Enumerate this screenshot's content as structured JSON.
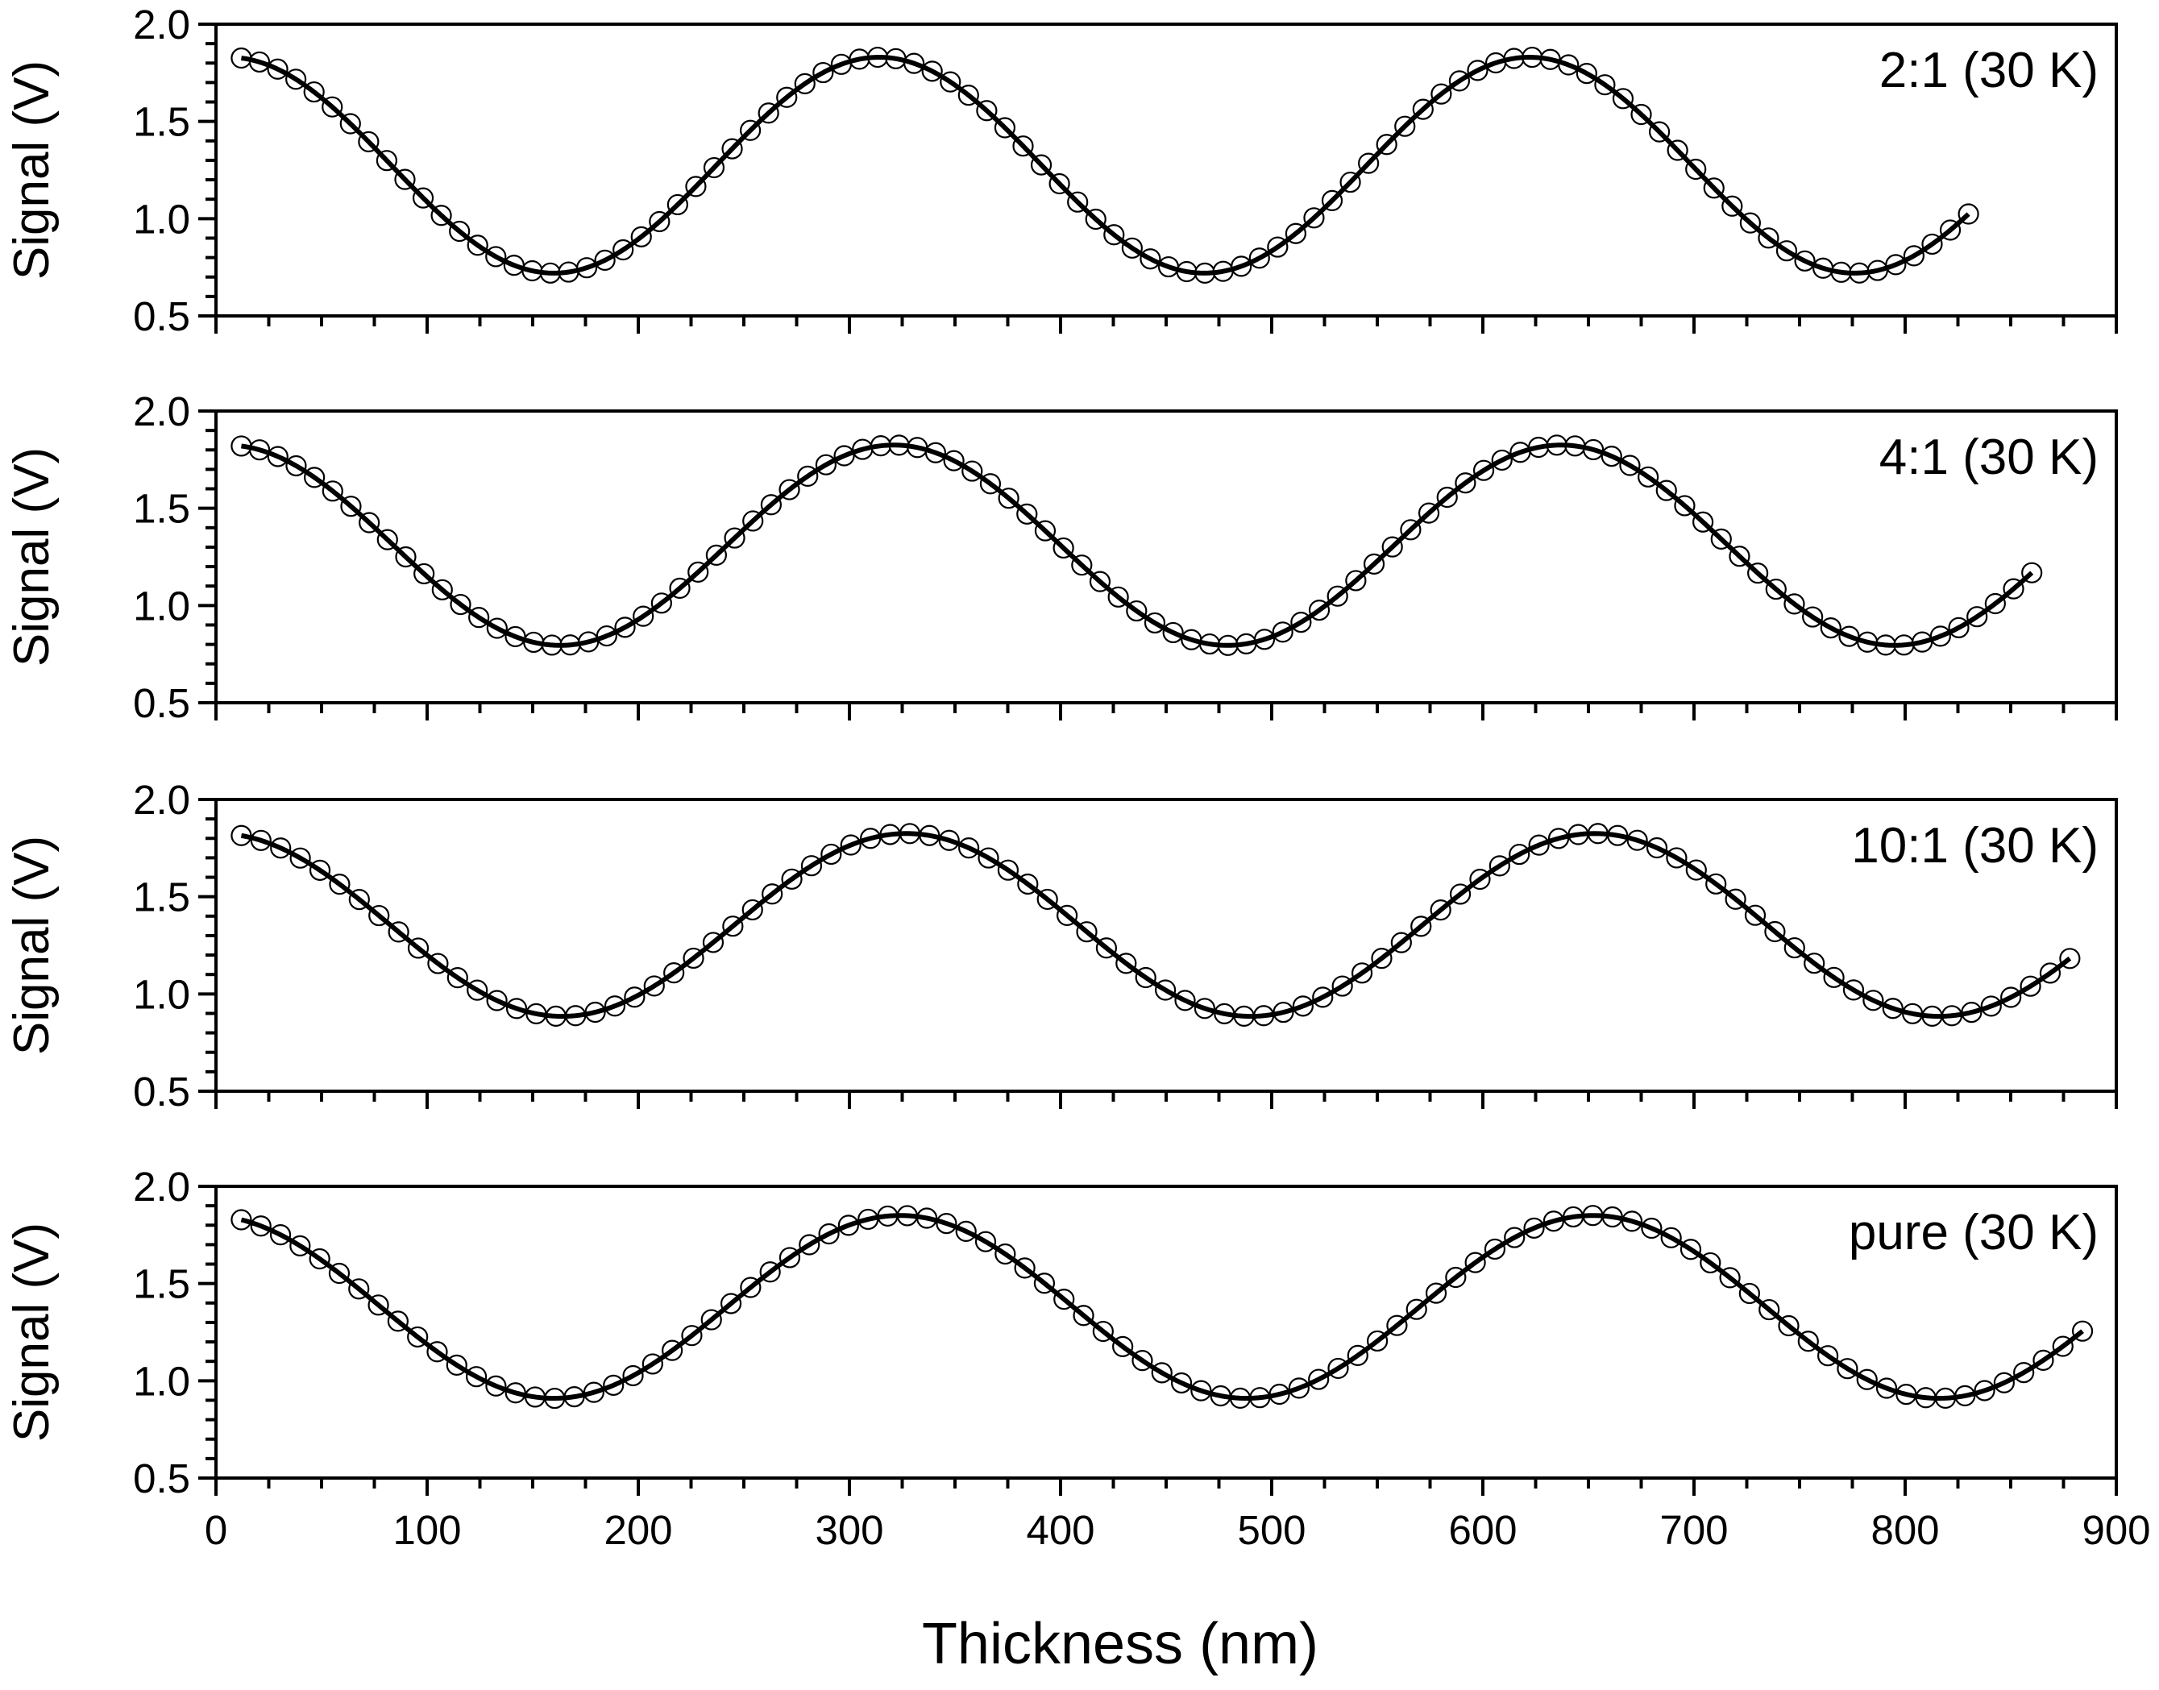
{
  "chart_data": {
    "type": "scatter",
    "xlabel": "Thickness (nm)",
    "xlim": [
      0,
      900
    ],
    "xticks": [
      "0",
      "100",
      "200",
      "300",
      "400",
      "500",
      "600",
      "700",
      "800",
      "900"
    ],
    "ylabel": "Signal (V)",
    "ylim": [
      0.5,
      2.0
    ],
    "yticks": [
      "0.5",
      "1.0",
      "1.5",
      "2.0"
    ],
    "grid": false,
    "colors": {
      "axis": "#000000",
      "marker_edge": "#000000",
      "marker_fill": "#ffffff",
      "fit_line": "#000000"
    },
    "panels": [
      {
        "label": "2:1 (30 K)",
        "x_start": 12,
        "x_end": 830,
        "n_points": 96,
        "fit": {
          "mean": 1.275,
          "amplitude": 0.555,
          "period": 308,
          "x_max": 6
        }
      },
      {
        "label": "4:1 (30 K)",
        "x_start": 12,
        "x_end": 860,
        "n_points": 99,
        "fit": {
          "mean": 1.31,
          "amplitude": 0.515,
          "period": 316,
          "x_max": 5
        }
      },
      {
        "label": "10:1 (30 K)",
        "x_start": 12,
        "x_end": 878,
        "n_points": 94,
        "fit": {
          "mean": 1.355,
          "amplitude": 0.47,
          "period": 326,
          "x_max": 1
        }
      },
      {
        "label": "pure (30 K)",
        "x_start": 12,
        "x_end": 884,
        "n_points": 95,
        "fit": {
          "mean": 1.38,
          "amplitude": 0.47,
          "period": 328,
          "x_max": -4
        }
      }
    ]
  }
}
